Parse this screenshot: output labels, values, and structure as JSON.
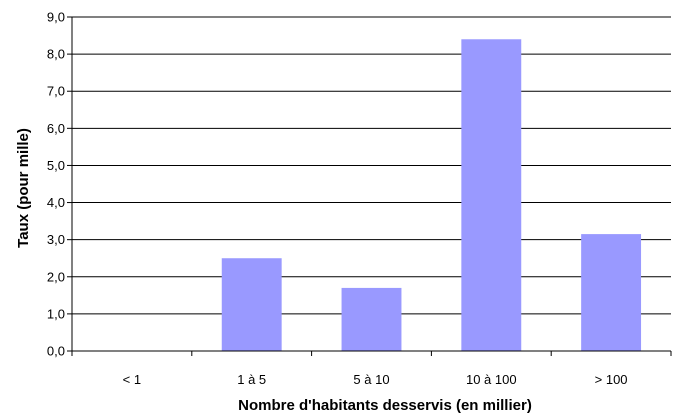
{
  "chart_data": {
    "type": "bar",
    "title": "",
    "xlabel": "Nombre d'habitants desservis (en millier)",
    "ylabel": "Taux (pour mille)",
    "categories": [
      "< 1",
      "1 à 5",
      "5 à 10",
      "10 à 100",
      "> 100"
    ],
    "values": [
      0,
      2.5,
      1.7,
      8.4,
      3.15
    ],
    "ylim": [
      0,
      9
    ],
    "yticks": [
      "0,0",
      "1,0",
      "2,0",
      "3,0",
      "4,0",
      "5,0",
      "6,0",
      "7,0",
      "8,0",
      "9,0"
    ],
    "grid": "horizontal",
    "legend": "none",
    "colors": {
      "bar": "#9999FF",
      "grid": "#000000",
      "axis": "#000000"
    }
  }
}
